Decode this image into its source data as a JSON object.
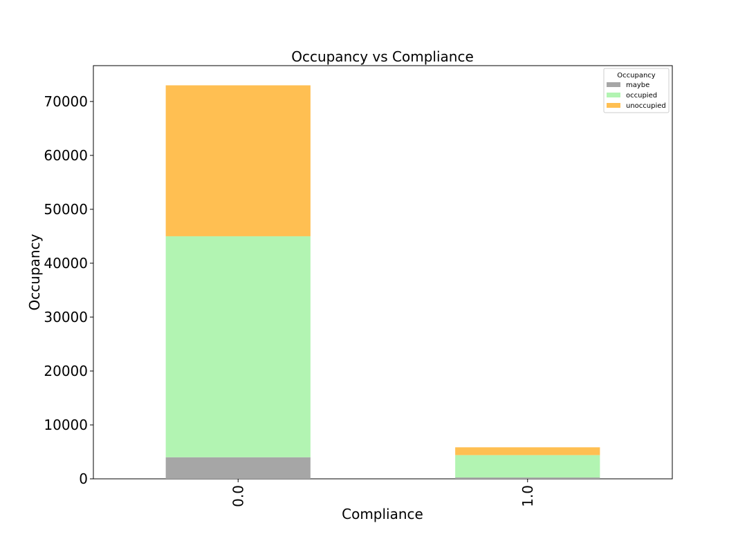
{
  "chart_data": {
    "type": "bar",
    "stacked": true,
    "title": "Occupancy vs Compliance",
    "xlabel": "Compliance",
    "ylabel": "Occupancy",
    "categories": [
      "0.0",
      "1.0"
    ],
    "series": [
      {
        "name": "maybe",
        "color": "#a6a6a6",
        "values": [
          4000,
          250
        ]
      },
      {
        "name": "occupied",
        "color": "#b2f4b2",
        "values": [
          41000,
          4150
        ]
      },
      {
        "name": "unoccupied",
        "color": "#ffbf52",
        "values": [
          28000,
          1450
        ]
      }
    ],
    "yticks": [
      0,
      10000,
      20000,
      30000,
      40000,
      50000,
      60000,
      70000
    ],
    "ylim": [
      0,
      76650
    ],
    "grid": false,
    "legend": {
      "title": "Occupancy",
      "position": "top-right"
    },
    "tick_label_rotation": "vertical"
  }
}
